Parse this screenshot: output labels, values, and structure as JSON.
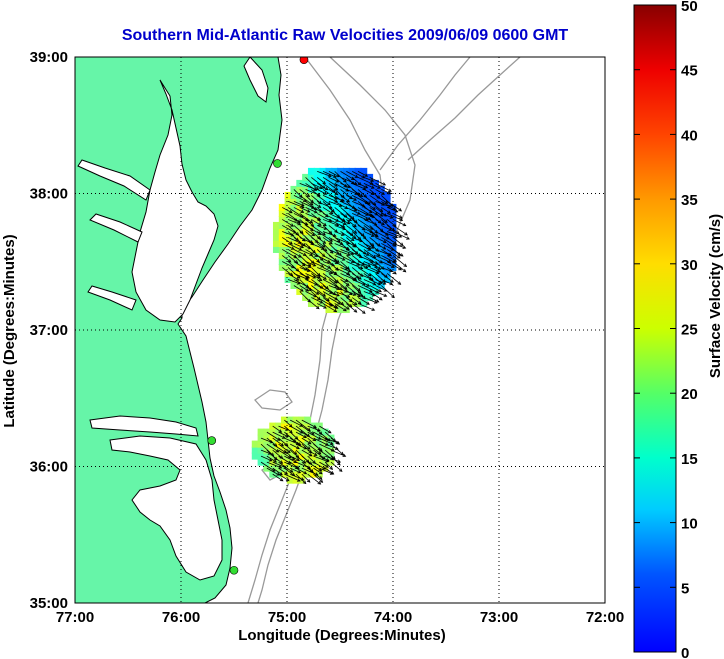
{
  "chart_data": {
    "type": "map-vector-field",
    "title": "Southern Mid-Atlantic Raw Velocities 2009/06/09 0600 GMT",
    "xlabel": "Longitude (Degrees:Minutes)",
    "ylabel": "Latitude (Degrees:Minutes)",
    "xlim": [
      -77,
      -72
    ],
    "ylim": [
      35,
      39
    ],
    "x_ticks": [
      "77:00",
      "76:00",
      "75:00",
      "74:00",
      "73:00",
      "72:00"
    ],
    "y_ticks": [
      "35:00",
      "36:00",
      "37:00",
      "38:00",
      "39:00"
    ],
    "grid": "dotted",
    "colorbar": {
      "label": "Surface Velocity (cm/s)",
      "min": 0,
      "max": 50,
      "ticks": [
        "0",
        "5",
        "10",
        "15",
        "20",
        "25",
        "30",
        "35",
        "40",
        "45",
        "50"
      ],
      "colormap": "jet"
    },
    "land_color": "#66f5a8",
    "coastline_color": "#000000",
    "bathymetry_color": "#999999",
    "radar_sites": [
      {
        "lon": -74.84,
        "lat": 38.98,
        "color": "#ff0000"
      },
      {
        "lon": -75.09,
        "lat": 38.22,
        "color": "#33dd33"
      },
      {
        "lon": -75.71,
        "lat": 36.19,
        "color": "#33dd33"
      },
      {
        "lon": -75.5,
        "lat": 35.24,
        "color": "#33dd33"
      }
    ],
    "series": [
      {
        "region": "north",
        "lon_range": [
          -75.1,
          -73.95
        ],
        "lat_range": [
          37.15,
          38.2
        ],
        "speed_range_cm_s": [
          10,
          32
        ],
        "mean_direction": "southeast"
      },
      {
        "region": "south",
        "lon_range": [
          -75.3,
          -74.55
        ],
        "lat_range": [
          35.9,
          36.35
        ],
        "speed_range_cm_s": [
          12,
          32
        ],
        "mean_direction": "east-southeast"
      }
    ]
  }
}
